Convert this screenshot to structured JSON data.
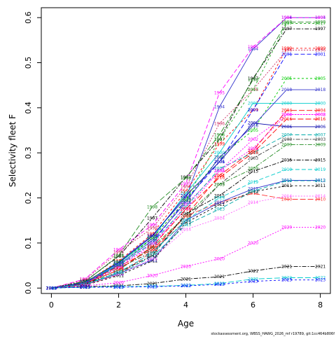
{
  "chart_data": {
    "type": "line",
    "title": "",
    "xlabel": "Age",
    "ylabel": "Selectivity fleet F",
    "x": [
      0,
      1,
      2,
      3,
      4,
      5,
      6,
      7,
      8
    ],
    "xlim": [
      -0.3,
      8.3
    ],
    "ylim": [
      -0.012,
      0.622
    ],
    "x_ticks": [
      0,
      2,
      4,
      6,
      8
    ],
    "y_ticks": [
      0.0,
      0.1,
      0.2,
      0.3,
      0.4,
      0.5,
      0.6
    ],
    "y_tick_labels": [
      "0.0",
      "0.1",
      "0.2",
      "0.3",
      "0.4",
      "0.5",
      "0.6"
    ],
    "grid": false,
    "legend": "none",
    "footer": "stockassessment.org, WBSS_HAWG_2026_mf r19789, git:1cc464b806f",
    "series": [
      {
        "name": "1994",
        "color": "#3333cc",
        "values": [
          0.0,
          0.012,
          0.058,
          0.117,
          0.2,
          0.402,
          0.53,
          0.6,
          0.6
        ]
      },
      {
        "name": "1995",
        "color": "#ff00ff",
        "values": [
          0.0,
          0.02,
          0.085,
          0.14,
          0.232,
          0.433,
          0.535,
          0.6,
          0.6
        ]
      },
      {
        "name": "1996",
        "color": "#cc3366",
        "values": [
          0.0,
          0.018,
          0.08,
          0.133,
          0.225,
          0.365,
          0.44,
          0.528,
          0.528
        ]
      },
      {
        "name": "1997",
        "color": "#000000",
        "values": [
          0.0,
          0.015,
          0.07,
          0.155,
          0.246,
          0.33,
          0.465,
          0.575,
          0.575
        ]
      },
      {
        "name": "1998",
        "color": "#228b22",
        "values": [
          0.0,
          0.014,
          0.072,
          0.18,
          0.244,
          0.34,
          0.462,
          0.59,
          0.59
        ]
      },
      {
        "name": "1999",
        "color": "#ff0000",
        "values": [
          0.0,
          0.012,
          0.06,
          0.12,
          0.215,
          0.32,
          0.395,
          0.532,
          0.532
        ]
      },
      {
        "name": "2000",
        "color": "#00cccc",
        "values": [
          0.0,
          0.01,
          0.055,
          0.11,
          0.21,
          0.3,
          0.41,
          0.41,
          0.41
        ]
      },
      {
        "name": "2001",
        "color": "#0000ff",
        "values": [
          0.0,
          0.008,
          0.05,
          0.1,
          0.195,
          0.28,
          0.395,
          0.519,
          0.519
        ]
      },
      {
        "name": "2002",
        "color": "#ff00ff",
        "values": [
          0.0,
          0.01,
          0.052,
          0.09,
          0.185,
          0.26,
          0.33,
          0.385,
          0.385
        ]
      },
      {
        "name": "2003",
        "color": "#3a3a3a",
        "values": [
          0.0,
          0.009,
          0.045,
          0.08,
          0.15,
          0.23,
          0.288,
          0.33,
          0.33
        ]
      },
      {
        "name": "2004",
        "color": "#ff0000",
        "values": [
          0.0,
          0.011,
          0.048,
          0.085,
          0.16,
          0.25,
          0.305,
          0.394,
          0.394
        ]
      },
      {
        "name": "2005",
        "color": "#00cc00",
        "values": [
          0.0,
          0.012,
          0.05,
          0.11,
          0.195,
          0.29,
          0.35,
          0.465,
          0.465
        ]
      },
      {
        "name": "2006",
        "color": "#0000aa",
        "values": [
          0.0,
          0.013,
          0.056,
          0.115,
          0.205,
          0.28,
          0.366,
          0.358,
          0.358
        ]
      },
      {
        "name": "2007",
        "color": "#00aaaa",
        "values": [
          0.0,
          0.012,
          0.05,
          0.1,
          0.18,
          0.265,
          0.3,
          0.34,
          0.34
        ]
      },
      {
        "name": "2008",
        "color": "#ff00ff",
        "values": [
          0.0,
          0.01,
          0.045,
          0.098,
          0.175,
          0.26,
          0.31,
          0.385,
          0.385
        ]
      },
      {
        "name": "2009",
        "color": "#228b22",
        "values": [
          0.0,
          0.009,
          0.04,
          0.09,
          0.16,
          0.23,
          0.265,
          0.318,
          0.318
        ]
      },
      {
        "name": "2010",
        "color": "#ff3333",
        "values": [
          0.0,
          0.007,
          0.03,
          0.08,
          0.16,
          0.19,
          0.21,
          0.197,
          0.197
        ]
      },
      {
        "name": "2011",
        "color": "#000000",
        "values": [
          0.0,
          0.006,
          0.028,
          0.06,
          0.145,
          0.185,
          0.214,
          0.227,
          0.227
        ]
      },
      {
        "name": "2012",
        "color": "#3333cc",
        "values": [
          0.0,
          0.008,
          0.032,
          0.062,
          0.15,
          0.19,
          0.22,
          0.239,
          0.239
        ]
      },
      {
        "name": "2013",
        "color": "#00aaaa",
        "values": [
          0.0,
          0.008,
          0.031,
          0.07,
          0.14,
          0.175,
          0.215,
          0.238,
          0.238
        ]
      },
      {
        "name": "2014",
        "color": "#ff66ff",
        "values": [
          0.0,
          0.007,
          0.03,
          0.065,
          0.13,
          0.155,
          0.19,
          0.204,
          0.204
        ]
      },
      {
        "name": "2015",
        "color": "#000000",
        "values": [
          0.0,
          0.009,
          0.035,
          0.072,
          0.165,
          0.205,
          0.259,
          0.284,
          0.284
        ]
      },
      {
        "name": "2016",
        "color": "#ff0000",
        "values": [
          0.0,
          0.01,
          0.04,
          0.092,
          0.175,
          0.245,
          0.3,
          0.375,
          0.375
        ]
      },
      {
        "name": "2017",
        "color": "#22aa22",
        "values": [
          0.0,
          0.012,
          0.058,
          0.11,
          0.195,
          0.33,
          0.44,
          0.587,
          0.587
        ]
      },
      {
        "name": "2018",
        "color": "#3333cc",
        "values": [
          0.0,
          0.011,
          0.052,
          0.105,
          0.19,
          0.29,
          0.36,
          0.44,
          0.44
        ]
      },
      {
        "name": "2019",
        "color": "#00cccc",
        "values": [
          0.0,
          0.008,
          0.035,
          0.078,
          0.15,
          0.2,
          0.235,
          0.263,
          0.263
        ]
      },
      {
        "name": "2020",
        "color": "#ff00ff",
        "values": [
          0.0,
          0.005,
          0.012,
          0.028,
          0.048,
          0.065,
          0.1,
          0.135,
          0.135
        ]
      },
      {
        "name": "2021",
        "color": "#000000",
        "values": [
          0.0,
          0.003,
          0.005,
          0.01,
          0.02,
          0.025,
          0.038,
          0.048,
          0.048
        ]
      },
      {
        "name": "2022",
        "color": "#00cccc",
        "values": [
          0.0,
          0.002,
          0.003,
          0.004,
          0.006,
          0.01,
          0.02,
          0.023,
          0.023
        ]
      },
      {
        "name": "2023",
        "color": "#0000ff",
        "values": [
          0.0,
          0.002,
          0.002,
          0.003,
          0.005,
          0.008,
          0.015,
          0.018,
          0.018
        ]
      }
    ]
  }
}
